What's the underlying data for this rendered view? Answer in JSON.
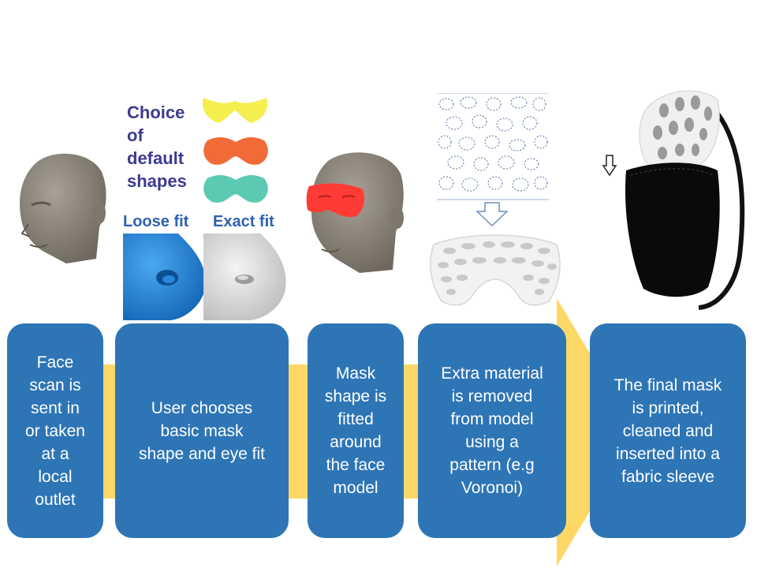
{
  "steps": [
    {
      "text": "Face\nscan is\nsent in\nor taken\nat a\nlocal\noutlet"
    },
    {
      "text": "User chooses\nbasic mask\nshape and eye fit"
    },
    {
      "text": "Mask\nshape is\nfitted\naround\nthe face\nmodel"
    },
    {
      "text": "Extra material\nis removed\nfrom model\nusing a\npattern (e.g\nVoronoi)"
    },
    {
      "text": "The final mask\nis printed,\ncleaned and\ninserted into a\nfabric sleeve"
    }
  ],
  "shapes": {
    "label": "Choice\nof\ndefault\nshapes",
    "colors": [
      "#f5ee4f",
      "#f26a38",
      "#5cc9b3"
    ]
  },
  "fit": {
    "loose": "Loose fit",
    "exact": "Exact fit"
  },
  "colors": {
    "box": "#2e75b6",
    "arrow": "#fdd866",
    "head": "#8f887c",
    "mask_red": "#ff3b36",
    "loose_blue": "#1e88d8"
  },
  "icons": [
    "head-icon",
    "mask-shape-icon",
    "voronoi-pattern-icon",
    "down-arrow-icon",
    "printed-mask-icon"
  ]
}
